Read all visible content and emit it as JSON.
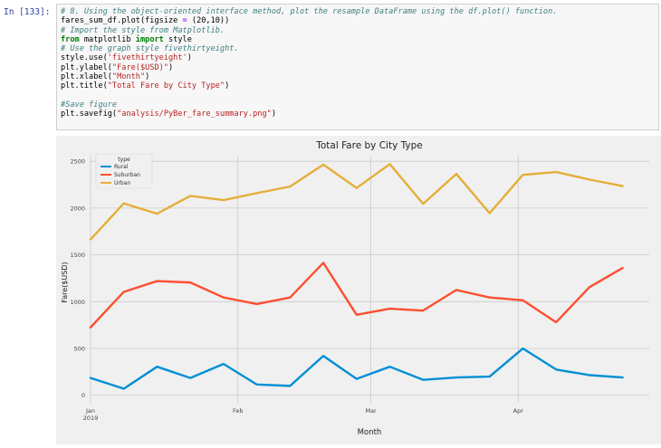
{
  "cell": {
    "prompt": "In [133]:",
    "code_lines": [
      [
        {
          "t": "# 8. Using the object-oriented interface method, plot the resample DataFrame using the df.plot() function.",
          "c": "cm"
        }
      ],
      [
        {
          "t": "fares_sum_df.plot(figsize ",
          "c": ""
        },
        {
          "t": "=",
          "c": "op"
        },
        {
          "t": " (20,10))",
          "c": ""
        }
      ],
      [
        {
          "t": "# Import the style from Matplotlib.",
          "c": "cm"
        }
      ],
      [
        {
          "t": "from",
          "c": "kw"
        },
        {
          "t": " matplotlib ",
          "c": ""
        },
        {
          "t": "import",
          "c": "kw"
        },
        {
          "t": " style",
          "c": ""
        }
      ],
      [
        {
          "t": "# Use the graph style fivethirtyeight.",
          "c": "cm"
        }
      ],
      [
        {
          "t": "style.use(",
          "c": ""
        },
        {
          "t": "'fivethirtyeight'",
          "c": "st"
        },
        {
          "t": ")",
          "c": ""
        }
      ],
      [
        {
          "t": "plt.ylabel(",
          "c": ""
        },
        {
          "t": "\"Fare($USD)\"",
          "c": "st"
        },
        {
          "t": ")",
          "c": ""
        }
      ],
      [
        {
          "t": "plt.xlabel(",
          "c": ""
        },
        {
          "t": "\"Month\"",
          "c": "st"
        },
        {
          "t": ")",
          "c": ""
        }
      ],
      [
        {
          "t": "plt.title(",
          "c": ""
        },
        {
          "t": "\"Total Fare by City Type\"",
          "c": "st"
        },
        {
          "t": ")",
          "c": ""
        }
      ],
      [],
      [
        {
          "t": "#Save figure",
          "c": "cm"
        }
      ],
      [
        {
          "t": "plt.savefig(",
          "c": ""
        },
        {
          "t": "\"analysis/PyBer_fare_summary.png\"",
          "c": "st"
        },
        {
          "t": ")",
          "c": ""
        }
      ]
    ]
  },
  "chart_data": {
    "type": "line",
    "title": "Total Fare by City Type",
    "xlabel": "Month",
    "ylabel": "Fare($USD)",
    "ylim": [
      -80,
      2560
    ],
    "yticks": [
      0,
      500,
      1000,
      1500,
      2000,
      2500
    ],
    "xlim": [
      0,
      16.8
    ],
    "xticks": [
      {
        "x": 0,
        "label": "Jan",
        "sublabel": "2019"
      },
      {
        "x": 4.43,
        "label": "Feb",
        "sublabel": ""
      },
      {
        "x": 8.43,
        "label": "Mar",
        "sublabel": ""
      },
      {
        "x": 12.86,
        "label": "Apr",
        "sublabel": ""
      }
    ],
    "grid": true,
    "legend": {
      "title": "type",
      "position": "top-left"
    },
    "series": [
      {
        "name": "Rural",
        "color": "#008fd5",
        "values": [
          185,
          70,
          305,
          185,
          335,
          115,
          100,
          420,
          175,
          305,
          165,
          190,
          200,
          500,
          275,
          215,
          190
        ]
      },
      {
        "name": "Suburban",
        "color": "#fc4f30",
        "values": [
          725,
          1105,
          1220,
          1205,
          1045,
          975,
          1045,
          1415,
          860,
          925,
          905,
          1125,
          1045,
          1015,
          780,
          1155,
          1360
        ]
      },
      {
        "name": "Urban",
        "color": "#e5ae38",
        "values": [
          1665,
          2050,
          1940,
          2130,
          2085,
          2160,
          2230,
          2465,
          2215,
          2470,
          2045,
          2365,
          1945,
          2355,
          2385,
          2305,
          2235
        ]
      }
    ]
  }
}
